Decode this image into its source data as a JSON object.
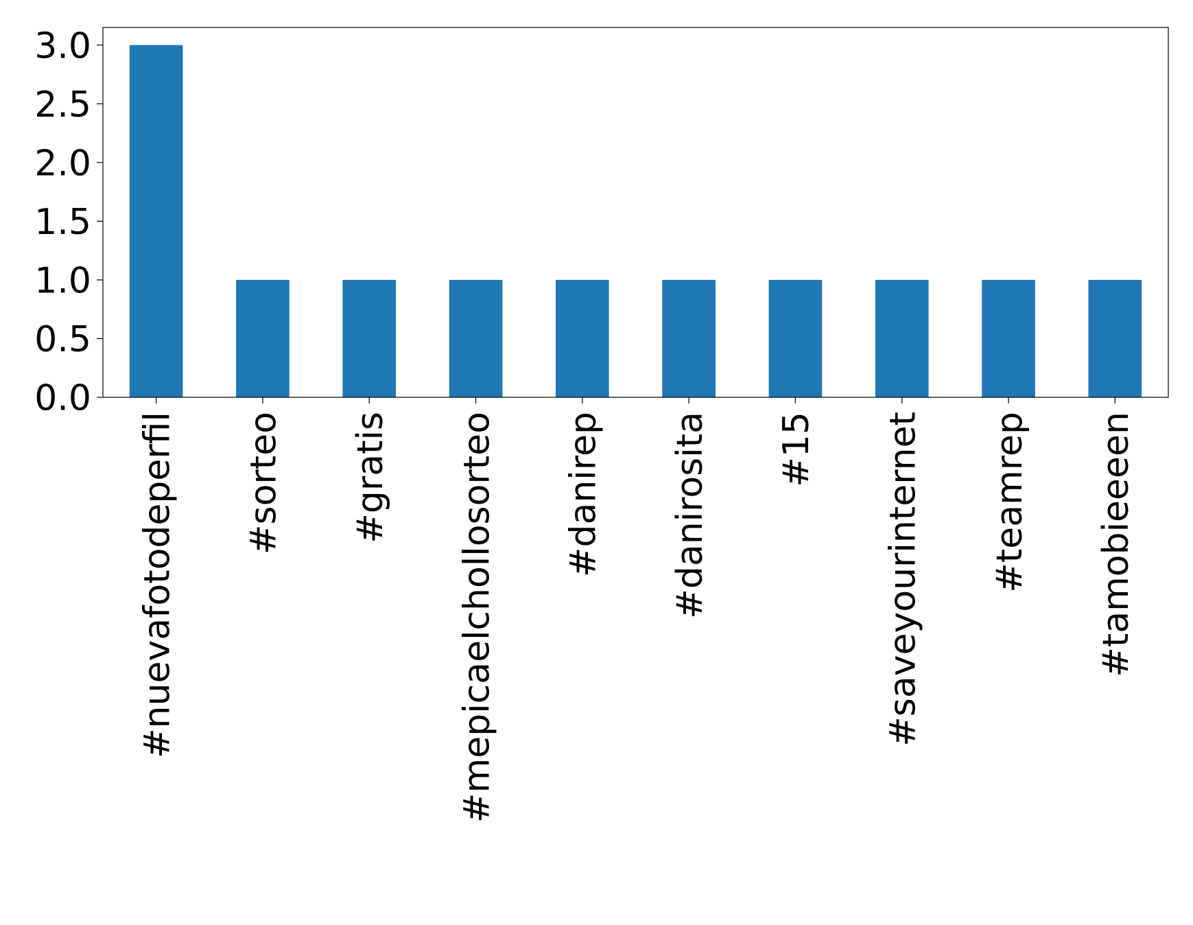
{
  "chart_data": {
    "type": "bar",
    "title": "",
    "xlabel": "",
    "ylabel": "",
    "categories": [
      "#nuevafotodeperfil",
      "#sorteo",
      "#gratis",
      "#mepicaelchollosorteo",
      "#danirep",
      "#danirosita",
      "#15",
      "#saveyourinternet",
      "#teamrep",
      "#tamobieeeen"
    ],
    "values": [
      3,
      1,
      1,
      1,
      1,
      1,
      1,
      1,
      1,
      1
    ],
    "ylim": [
      0,
      3.15
    ],
    "yticks": [
      0.0,
      0.5,
      1.0,
      1.5,
      2.0,
      2.5,
      3.0
    ],
    "ytick_labels": [
      "0.0",
      "0.5",
      "1.0",
      "1.5",
      "2.0",
      "2.5",
      "3.0"
    ],
    "bar_color": "#1f77b4",
    "grid": false,
    "legend": false
  }
}
